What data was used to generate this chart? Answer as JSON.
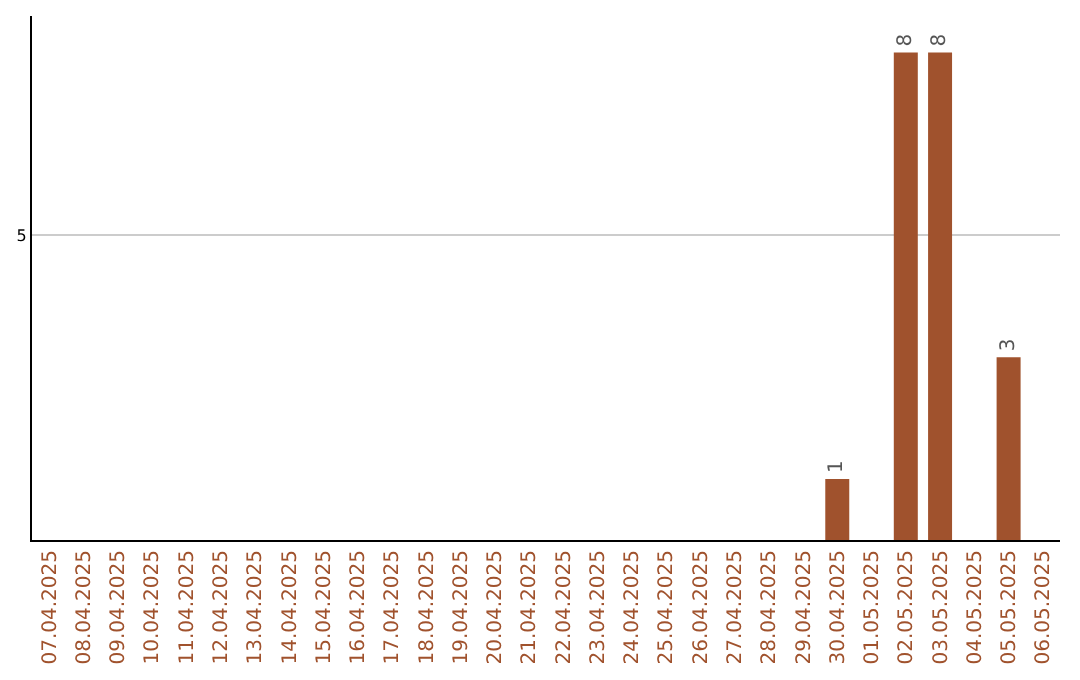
{
  "chart_data": {
    "type": "bar",
    "categories": [
      "07.04.2025",
      "08.04.2025",
      "09.04.2025",
      "10.04.2025",
      "11.04.2025",
      "12.04.2025",
      "13.04.2025",
      "14.04.2025",
      "15.04.2025",
      "16.04.2025",
      "17.04.2025",
      "18.04.2025",
      "19.04.2025",
      "20.04.2025",
      "21.04.2025",
      "22.04.2025",
      "23.04.2025",
      "24.04.2025",
      "25.04.2025",
      "26.04.2025",
      "27.04.2025",
      "28.04.2025",
      "29.04.2025",
      "30.04.2025",
      "01.05.2025",
      "02.05.2025",
      "03.05.2025",
      "04.05.2025",
      "05.05.2025",
      "06.05.2025"
    ],
    "values": [
      null,
      null,
      null,
      null,
      null,
      null,
      null,
      null,
      null,
      null,
      null,
      null,
      null,
      null,
      null,
      null,
      null,
      null,
      null,
      null,
      null,
      null,
      null,
      1,
      null,
      8,
      8,
      null,
      3,
      null
    ],
    "data_labels": true,
    "color": "#a0522d",
    "ylim": [
      0,
      8.6
    ],
    "yticks": [
      5
    ],
    "grid": "y",
    "legend": false
  }
}
